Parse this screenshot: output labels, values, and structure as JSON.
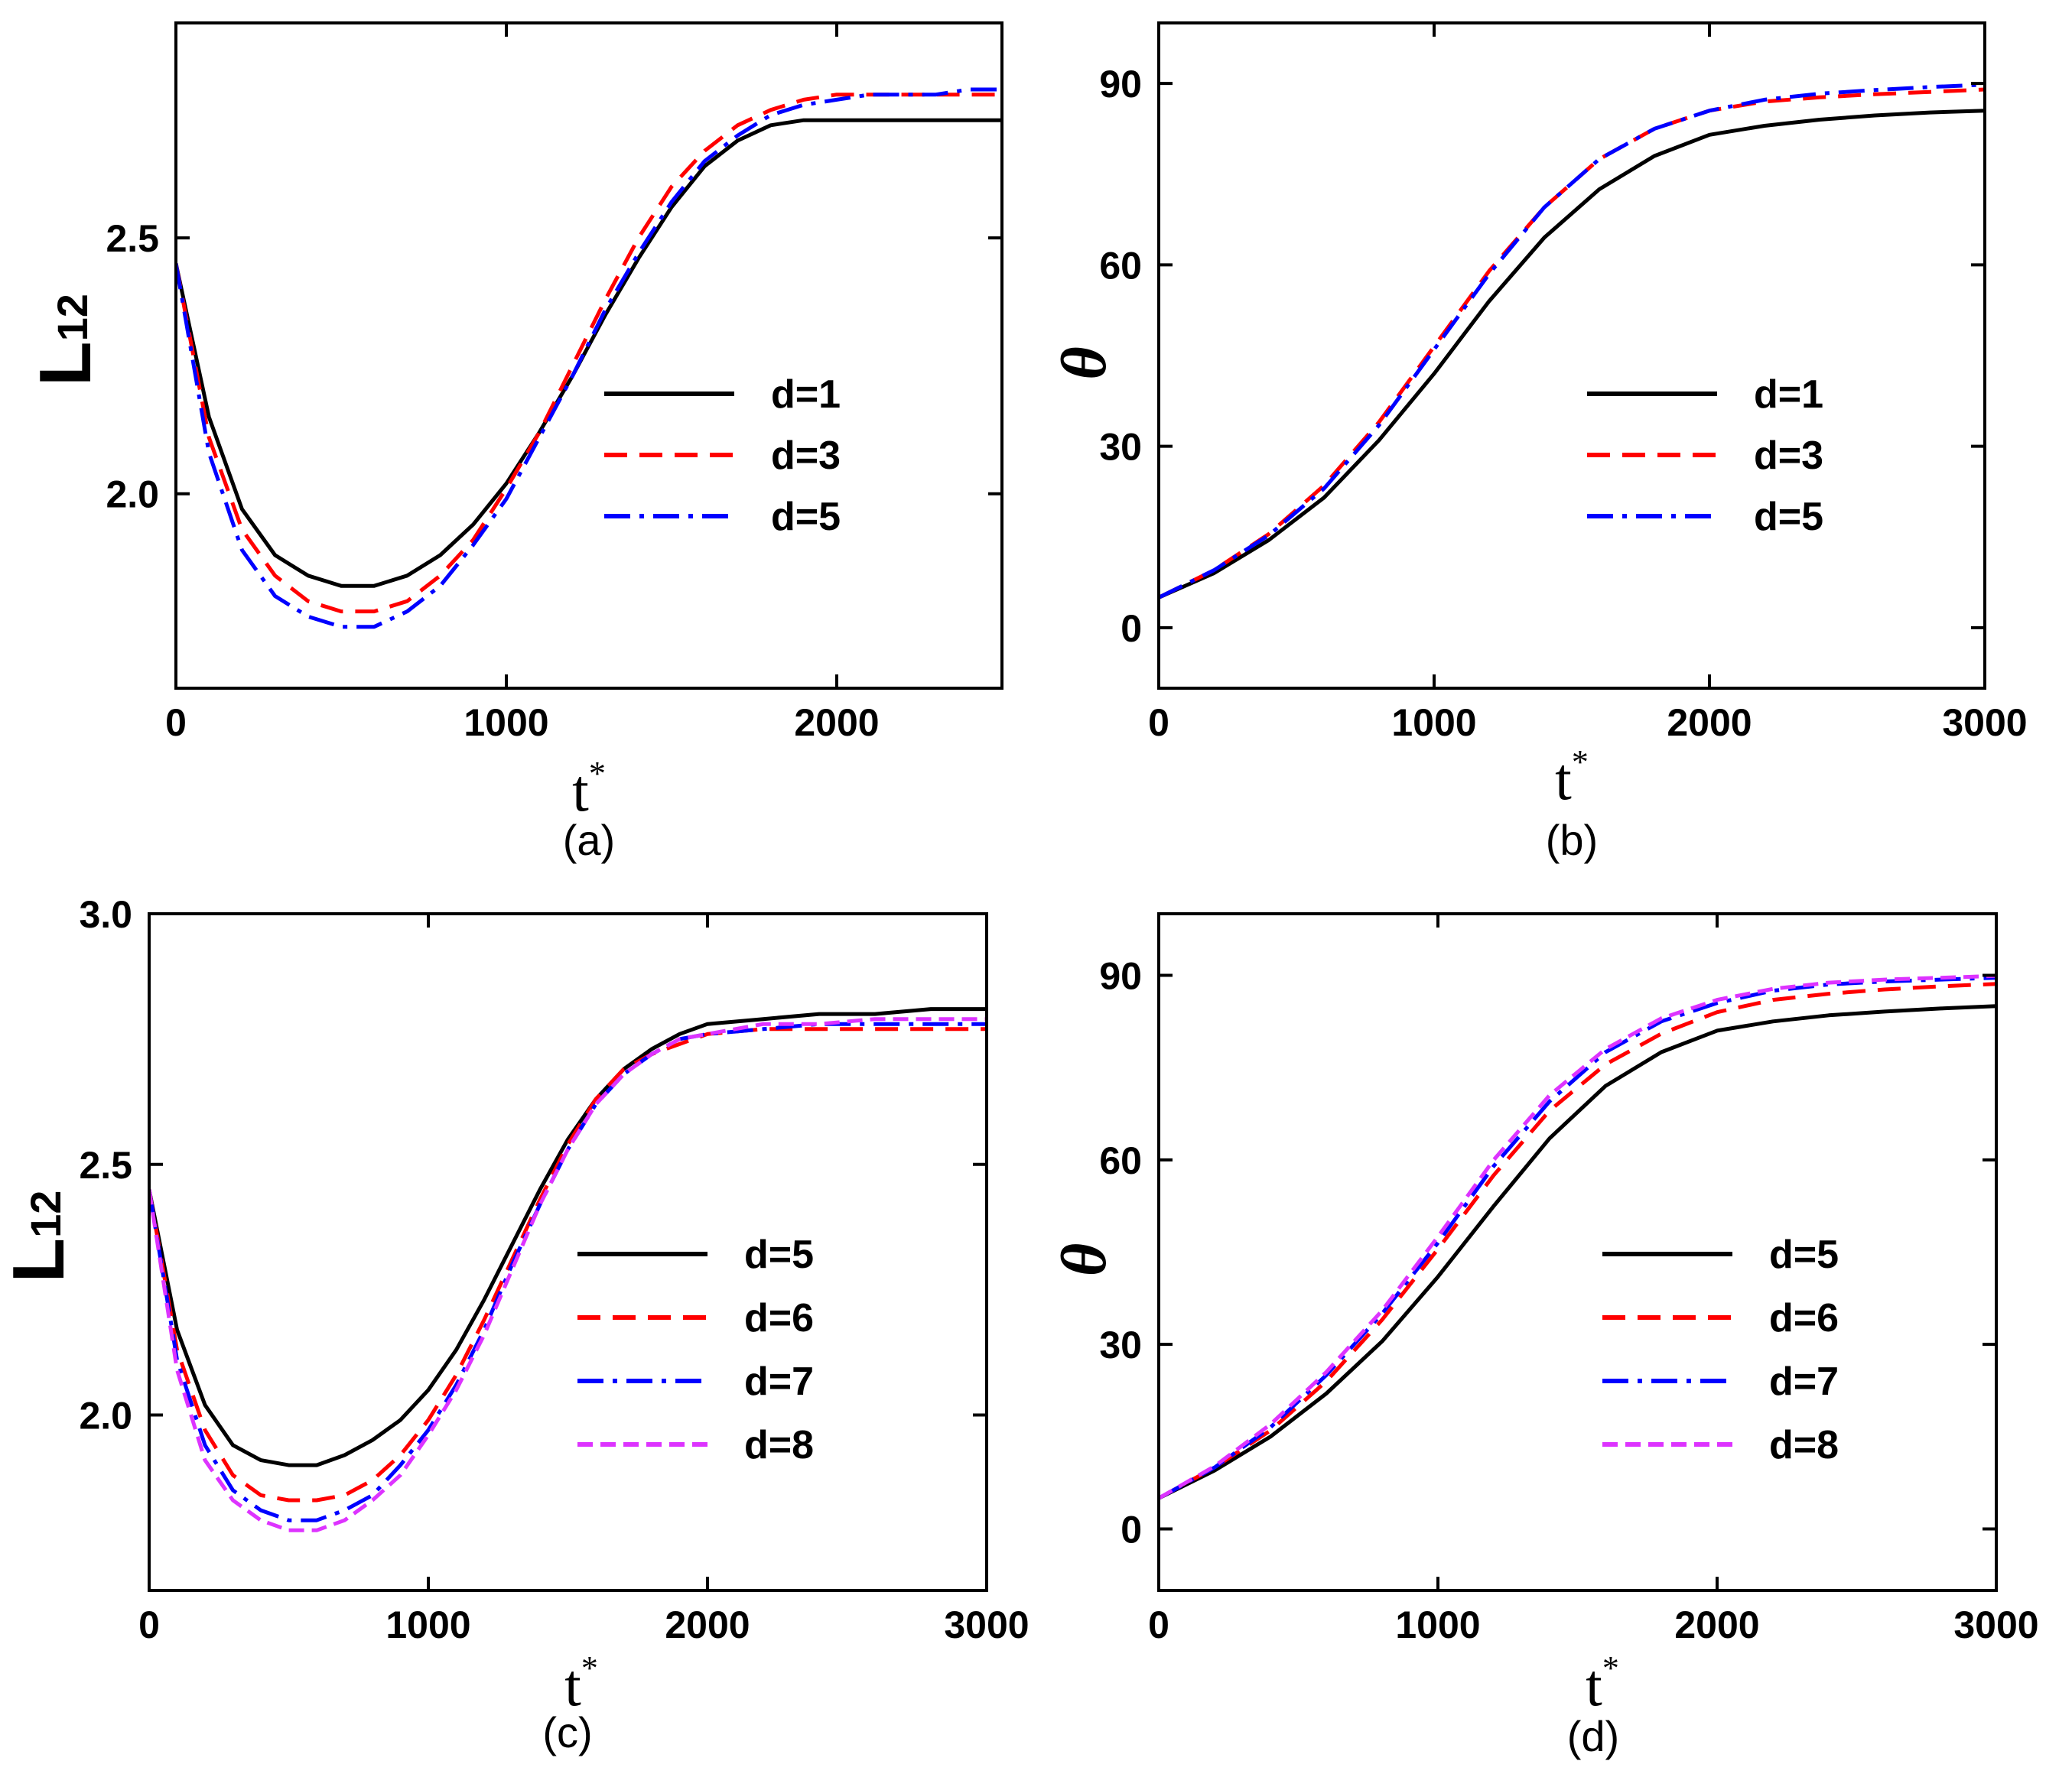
{
  "chart_data": [
    {
      "id": "a",
      "type": "line",
      "panel_label": "(a)",
      "xlabel": "t",
      "xlabel_sup": "*",
      "ylabel": "L",
      "ylabel_sub": "12",
      "xlim": [
        0,
        2500
      ],
      "ylim": [
        1.62,
        2.92
      ],
      "xticks": [
        0,
        1000,
        2000
      ],
      "yticks": [
        2.0,
        2.5
      ],
      "xtick_labels": [
        "0",
        "1000",
        "2000"
      ],
      "ytick_labels": [
        "2.0",
        "2.5"
      ],
      "legend_position": "center-right",
      "x": [
        0,
        100,
        200,
        300,
        400,
        500,
        600,
        700,
        800,
        900,
        1000,
        1100,
        1200,
        1300,
        1400,
        1500,
        1600,
        1700,
        1800,
        1900,
        2000,
        2100,
        2200,
        2300,
        2400,
        2500
      ],
      "series": [
        {
          "name": "d=1",
          "color": "#000000",
          "style": "solid",
          "values": [
            2.45,
            2.15,
            1.97,
            1.88,
            1.84,
            1.82,
            1.82,
            1.84,
            1.88,
            1.94,
            2.02,
            2.12,
            2.23,
            2.35,
            2.46,
            2.56,
            2.64,
            2.69,
            2.72,
            2.73,
            2.73,
            2.73,
            2.73,
            2.73,
            2.73,
            2.73
          ]
        },
        {
          "name": "d=3",
          "color": "#ff0000",
          "style": "dashed",
          "values": [
            2.45,
            2.11,
            1.93,
            1.84,
            1.79,
            1.77,
            1.77,
            1.79,
            1.84,
            1.91,
            2.01,
            2.12,
            2.25,
            2.38,
            2.5,
            2.6,
            2.67,
            2.72,
            2.75,
            2.77,
            2.78,
            2.78,
            2.78,
            2.78,
            2.78,
            2.78
          ]
        },
        {
          "name": "d=5",
          "color": "#0000ff",
          "style": "dashdot",
          "values": [
            2.45,
            2.08,
            1.89,
            1.8,
            1.76,
            1.74,
            1.74,
            1.77,
            1.82,
            1.9,
            1.99,
            2.11,
            2.23,
            2.36,
            2.47,
            2.57,
            2.65,
            2.7,
            2.74,
            2.76,
            2.77,
            2.78,
            2.78,
            2.78,
            2.79,
            2.79
          ]
        }
      ]
    },
    {
      "id": "b",
      "type": "line",
      "panel_label": "(b)",
      "xlabel": "t",
      "xlabel_sup": "*",
      "ylabel": "θ",
      "xlim": [
        0,
        3000
      ],
      "ylim": [
        -10,
        100
      ],
      "xticks": [
        0,
        1000,
        2000,
        3000
      ],
      "yticks": [
        0,
        30,
        60,
        90
      ],
      "xtick_labels": [
        "0",
        "1000",
        "2000",
        "3000"
      ],
      "ytick_labels": [
        "0",
        "30",
        "60",
        "90"
      ],
      "legend_position": "center-right",
      "x": [
        0,
        200,
        400,
        600,
        800,
        1000,
        1200,
        1400,
        1600,
        1800,
        2000,
        2200,
        2400,
        2600,
        2800,
        3000
      ],
      "series": [
        {
          "name": "d=1",
          "color": "#000000",
          "style": "solid",
          "values": [
            5,
            9,
            14.5,
            21.5,
            31,
            42,
            54,
            64.5,
            72.5,
            78,
            81.5,
            83,
            84,
            84.7,
            85.2,
            85.5
          ]
        },
        {
          "name": "d=3",
          "color": "#ff0000",
          "style": "dashed",
          "values": [
            5,
            9.5,
            15.5,
            23.5,
            34,
            46.5,
            59,
            69.5,
            77.5,
            82.5,
            85.5,
            87,
            87.7,
            88.2,
            88.6,
            89
          ]
        },
        {
          "name": "d=5",
          "color": "#0000ff",
          "style": "dashdot",
          "values": [
            5,
            9.5,
            15.3,
            23,
            33.5,
            46,
            58.5,
            69.5,
            77.5,
            82.5,
            85.5,
            87.3,
            88.3,
            88.9,
            89.4,
            89.8
          ]
        }
      ]
    },
    {
      "id": "c",
      "type": "line",
      "panel_label": "(c)",
      "xlabel": "t",
      "xlabel_sup": "*",
      "ylabel": "L",
      "ylabel_sub": "12",
      "xlim": [
        0,
        3000
      ],
      "ylim": [
        1.65,
        3.0
      ],
      "xticks": [
        0,
        1000,
        2000,
        3000
      ],
      "yticks": [
        2.0,
        2.5,
        3.0
      ],
      "xtick_labels": [
        "0",
        "1000",
        "2000",
        "3000"
      ],
      "ytick_labels": [
        "2.0",
        "2.5",
        "3.0"
      ],
      "legend_position": "center-right",
      "x": [
        0,
        100,
        200,
        300,
        400,
        500,
        600,
        700,
        800,
        900,
        1000,
        1100,
        1200,
        1300,
        1400,
        1500,
        1600,
        1700,
        1800,
        1900,
        2000,
        2200,
        2400,
        2600,
        2800,
        3000
      ],
      "series": [
        {
          "name": "d=5",
          "color": "#000000",
          "style": "solid",
          "values": [
            2.45,
            2.17,
            2.02,
            1.94,
            1.91,
            1.9,
            1.9,
            1.92,
            1.95,
            1.99,
            2.05,
            2.13,
            2.23,
            2.34,
            2.45,
            2.55,
            2.63,
            2.69,
            2.73,
            2.76,
            2.78,
            2.79,
            2.8,
            2.8,
            2.81,
            2.81
          ]
        },
        {
          "name": "d=6",
          "color": "#ff0000",
          "style": "dashed",
          "values": [
            2.45,
            2.13,
            1.97,
            1.88,
            1.84,
            1.83,
            1.83,
            1.84,
            1.87,
            1.92,
            1.99,
            2.08,
            2.19,
            2.31,
            2.43,
            2.54,
            2.63,
            2.69,
            2.72,
            2.74,
            2.76,
            2.77,
            2.77,
            2.77,
            2.77,
            2.77
          ]
        },
        {
          "name": "d=7",
          "color": "#0000ff",
          "style": "dashdot",
          "values": [
            2.45,
            2.11,
            1.94,
            1.85,
            1.81,
            1.79,
            1.79,
            1.81,
            1.84,
            1.9,
            1.97,
            2.06,
            2.17,
            2.3,
            2.42,
            2.53,
            2.62,
            2.68,
            2.72,
            2.75,
            2.76,
            2.77,
            2.78,
            2.78,
            2.78,
            2.78
          ]
        },
        {
          "name": "d=8",
          "color": "#dd33ff",
          "style": "dashed",
          "values": [
            2.45,
            2.09,
            1.91,
            1.83,
            1.79,
            1.77,
            1.77,
            1.79,
            1.83,
            1.88,
            1.96,
            2.05,
            2.16,
            2.29,
            2.42,
            2.53,
            2.62,
            2.68,
            2.72,
            2.75,
            2.76,
            2.78,
            2.78,
            2.79,
            2.79,
            2.79
          ]
        }
      ]
    },
    {
      "id": "d",
      "type": "line",
      "panel_label": "(d)",
      "xlabel": "t",
      "xlabel_sup": "*",
      "ylabel": "θ",
      "xlim": [
        0,
        3000
      ],
      "ylim": [
        -10,
        100
      ],
      "xticks": [
        0,
        1000,
        2000,
        3000
      ],
      "yticks": [
        0,
        30,
        60,
        90
      ],
      "xtick_labels": [
        "0",
        "1000",
        "2000",
        "3000"
      ],
      "ytick_labels": [
        "0",
        "30",
        "60",
        "90"
      ],
      "legend_position": "center-right",
      "x": [
        0,
        200,
        400,
        600,
        800,
        1000,
        1200,
        1400,
        1600,
        1800,
        2000,
        2200,
        2400,
        2600,
        2800,
        3000
      ],
      "series": [
        {
          "name": "d=5",
          "color": "#000000",
          "style": "solid",
          "values": [
            5,
            9.5,
            15,
            22,
            30.5,
            41,
            52.5,
            63.5,
            72,
            77.5,
            81,
            82.5,
            83.5,
            84.1,
            84.6,
            85
          ]
        },
        {
          "name": "d=6",
          "color": "#ff0000",
          "style": "dashed",
          "values": [
            5,
            10,
            16,
            24,
            34,
            45.5,
            57.5,
            68,
            75.5,
            80.5,
            84,
            86,
            87,
            87.7,
            88.2,
            88.6
          ]
        },
        {
          "name": "d=7",
          "color": "#0000ff",
          "style": "dashdot",
          "values": [
            5,
            10,
            16.5,
            25,
            35,
            46.5,
            59,
            69.5,
            77.5,
            82.5,
            85.5,
            87.5,
            88.5,
            89,
            89.3,
            89.6
          ]
        },
        {
          "name": "d=8",
          "color": "#dd33ff",
          "style": "dashed",
          "values": [
            5,
            10.2,
            17,
            25.5,
            35.5,
            47.5,
            60,
            70.5,
            78,
            83,
            86,
            87.8,
            88.8,
            89.3,
            89.6,
            89.9
          ]
        }
      ]
    }
  ]
}
